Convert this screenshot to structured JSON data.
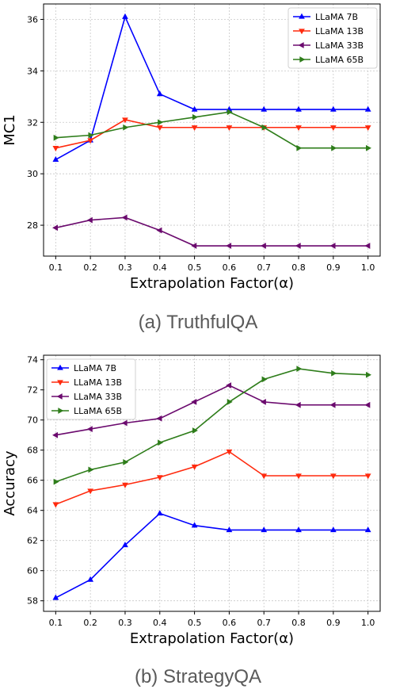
{
  "captions": [
    "(a) TruthfulQA",
    "(b) StrategyQA"
  ],
  "chart_data": [
    {
      "type": "line",
      "title": "",
      "xlabel": "Extrapolation Factor(α)",
      "ylabel": "MC1",
      "x": [
        0.1,
        0.2,
        0.3,
        0.4,
        0.5,
        0.6,
        0.7,
        0.8,
        0.9,
        1.0
      ],
      "xticks": [
        "0.1",
        "0.2",
        "0.3",
        "0.4",
        "0.5",
        "0.6",
        "0.7",
        "0.8",
        "0.9",
        "1.0"
      ],
      "yticks": [
        28,
        30,
        32,
        34,
        36
      ],
      "xlim": [
        0.065,
        1.035
      ],
      "ylim": [
        26.8,
        36.6
      ],
      "grid": true,
      "legend_position": "top-right",
      "series": [
        {
          "name": "LLaMA 7B",
          "color": "#0000ff",
          "marker": "triangle-up",
          "values": [
            30.55,
            31.3,
            36.1,
            33.1,
            32.5,
            32.5,
            32.5,
            32.5,
            32.5,
            32.5
          ]
        },
        {
          "name": "LLaMA 13B",
          "color": "#ff2a0e",
          "marker": "triangle-down",
          "values": [
            31.0,
            31.3,
            32.1,
            31.8,
            31.8,
            31.8,
            31.8,
            31.8,
            31.8,
            31.8
          ]
        },
        {
          "name": "LLaMA 33B",
          "color": "#6b0a6e",
          "marker": "triangle-left",
          "values": [
            27.9,
            28.2,
            28.3,
            27.8,
            27.2,
            27.2,
            27.2,
            27.2,
            27.2,
            27.2
          ]
        },
        {
          "name": "LLaMA 65B",
          "color": "#2e7d1a",
          "marker": "triangle-right",
          "values": [
            31.4,
            31.5,
            31.8,
            32.0,
            32.2,
            32.4,
            31.8,
            31.0,
            31.0,
            31.0
          ]
        }
      ]
    },
    {
      "type": "line",
      "title": "",
      "xlabel": "Extrapolation Factor(α)",
      "ylabel": "Accuracy",
      "x": [
        0.1,
        0.2,
        0.3,
        0.4,
        0.5,
        0.6,
        0.7,
        0.8,
        0.9,
        1.0
      ],
      "xticks": [
        "0.1",
        "0.2",
        "0.3",
        "0.4",
        "0.5",
        "0.6",
        "0.7",
        "0.8",
        "0.9",
        "1.0"
      ],
      "yticks": [
        58,
        60,
        62,
        64,
        66,
        68,
        70,
        72,
        74
      ],
      "xlim": [
        0.065,
        1.035
      ],
      "ylim": [
        57.3,
        74.3
      ],
      "grid": true,
      "legend_position": "top-left",
      "series": [
        {
          "name": "LLaMA 7B",
          "color": "#0000ff",
          "marker": "triangle-up",
          "values": [
            58.2,
            59.4,
            61.7,
            63.8,
            63.0,
            62.7,
            62.7,
            62.7,
            62.7,
            62.7
          ]
        },
        {
          "name": "LLaMA 13B",
          "color": "#ff2a0e",
          "marker": "triangle-down",
          "values": [
            64.4,
            65.3,
            65.7,
            66.2,
            66.9,
            67.9,
            66.3,
            66.3,
            66.3,
            66.3
          ]
        },
        {
          "name": "LLaMA 33B",
          "color": "#6b0a6e",
          "marker": "triangle-left",
          "values": [
            69.0,
            69.4,
            69.8,
            70.1,
            71.2,
            72.3,
            71.2,
            71.0,
            71.0,
            71.0
          ]
        },
        {
          "name": "LLaMA 65B",
          "color": "#2e7d1a",
          "marker": "triangle-right",
          "values": [
            65.9,
            66.7,
            67.2,
            68.5,
            69.3,
            71.2,
            72.7,
            73.4,
            73.1,
            73.0
          ]
        }
      ]
    }
  ]
}
